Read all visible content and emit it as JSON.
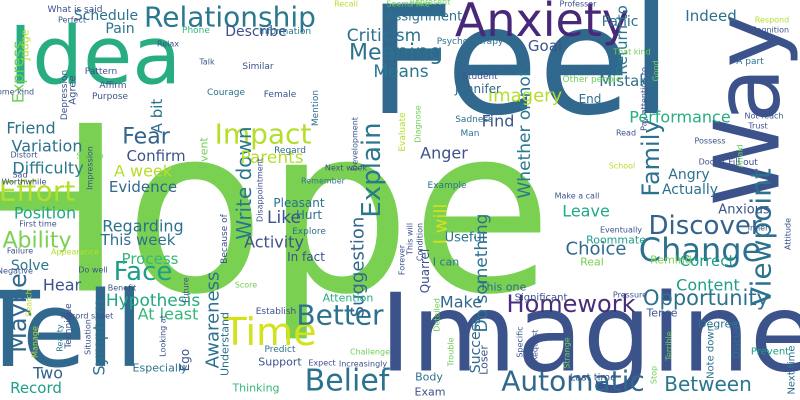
{
  "words": [
    {
      "text": "Hope",
      "color": "#7ad151"
    },
    {
      "text": "Feel",
      "color": "#30688e"
    },
    {
      "text": "Imagine",
      "color": "#3b528b"
    },
    {
      "text": "Idea",
      "color": "#27ad81"
    },
    {
      "text": "Tell",
      "color": "#31688e"
    },
    {
      "text": "Way",
      "color": "#3b528b"
    },
    {
      "text": "Anxiety",
      "color": "#482878"
    },
    {
      "text": "Change",
      "color": "#2c728e"
    },
    {
      "text": "Relationship",
      "color": "#2a788e"
    },
    {
      "text": "Belief",
      "color": "#2c728e"
    },
    {
      "text": "Time",
      "color": "#d2e21b"
    },
    {
      "text": "Impact",
      "color": "#b5de2b"
    },
    {
      "text": "Automatic",
      "color": "#31688e"
    },
    {
      "text": "Better",
      "color": "#2c728e"
    },
    {
      "text": "Viewpoint",
      "color": "#2c728e"
    },
    {
      "text": "Discover",
      "color": "#33638d"
    },
    {
      "text": "Explain",
      "color": "#2a788e"
    },
    {
      "text": "Family",
      "color": "#2c728e"
    },
    {
      "text": "Face",
      "color": "#1f9e89"
    },
    {
      "text": "Effort",
      "color": "#b5de2b"
    },
    {
      "text": "Homework",
      "color": "#472d7b"
    },
    {
      "text": "Opportunity",
      "color": "#2c728e"
    },
    {
      "text": "Between",
      "color": "#2a788e"
    },
    {
      "text": "Maybe",
      "color": "#31688e"
    },
    {
      "text": "Meaning",
      "color": "#2c728e"
    },
    {
      "text": "Write down",
      "color": "#2a788e"
    },
    {
      "text": "Fear",
      "color": "#33638d"
    },
    {
      "text": "Ability",
      "color": "#7ad151"
    },
    {
      "text": "Awareness",
      "color": "#2c728e"
    },
    {
      "text": "Parents",
      "color": "#b5de2b"
    },
    {
      "text": "Suggestion",
      "color": "#31688e"
    },
    {
      "text": "Do something",
      "color": "#2c728e"
    },
    {
      "text": "Whether or not",
      "color": "#2a788e"
    },
    {
      "text": "Hypothesis",
      "color": "#22a884"
    },
    {
      "text": "Means",
      "color": "#2a788e"
    },
    {
      "text": "Criticism",
      "color": "#2c728e"
    },
    {
      "text": "Imagery",
      "color": "#b5de2b"
    },
    {
      "text": "Find",
      "color": "#3b528b"
    },
    {
      "text": "Anger",
      "color": "#3b528b"
    },
    {
      "text": "Choice",
      "color": "#31688e"
    },
    {
      "text": "Make",
      "color": "#31688e"
    },
    {
      "text": "Leave",
      "color": "#22a884"
    },
    {
      "text": "Content",
      "color": "#1f9e89"
    },
    {
      "text": "Correct",
      "color": "#1f9e89"
    },
    {
      "text": "Position",
      "color": "#22a884"
    },
    {
      "text": "Difficulty",
      "color": "#2a788e"
    },
    {
      "text": "Variation",
      "color": "#2c728e"
    },
    {
      "text": "Friend",
      "color": "#2c728e"
    },
    {
      "text": "Confirm",
      "color": "#3b528b"
    },
    {
      "text": "Evidence",
      "color": "#31688e"
    },
    {
      "text": "A week",
      "color": "#b5de2b"
    },
    {
      "text": "Regarding",
      "color": "#2c728e"
    },
    {
      "text": "This week",
      "color": "#2c728e"
    },
    {
      "text": "Process",
      "color": "#35b779"
    },
    {
      "text": "At least",
      "color": "#35b779"
    },
    {
      "text": "Activity",
      "color": "#3b528b"
    },
    {
      "text": "Like",
      "color": "#3b528b"
    },
    {
      "text": "I will",
      "color": "#d2e21b"
    },
    {
      "text": "Mistake",
      "color": "#2c728e"
    },
    {
      "text": "Return to",
      "color": "#2a788e"
    },
    {
      "text": "Goal",
      "color": "#3b528b"
    },
    {
      "text": "Panic",
      "color": "#2c728e"
    },
    {
      "text": "Indeed",
      "color": "#2c728e"
    },
    {
      "text": "Performance",
      "color": "#27ad81"
    },
    {
      "text": "Angry",
      "color": "#2c728e"
    },
    {
      "text": "Actually",
      "color": "#2c728e"
    },
    {
      "text": "Anxious",
      "color": "#3b528b"
    },
    {
      "text": "Two",
      "color": "#33638d"
    },
    {
      "text": "Record",
      "color": "#1f9e89"
    },
    {
      "text": "Hear",
      "color": "#3b528b"
    },
    {
      "text": "Solve",
      "color": "#2a788e"
    },
    {
      "text": "Express",
      "color": "#6ece58"
    },
    {
      "text": "Schedule",
      "color": "#2c728e"
    },
    {
      "text": "Pain",
      "color": "#2c728e"
    },
    {
      "text": "Describe",
      "color": "#3b528b"
    },
    {
      "text": "A bit",
      "color": "#2c728e"
    },
    {
      "text": "Assignment",
      "color": "#2c728e"
    },
    {
      "text": "End",
      "color": "#2c728e"
    },
    {
      "text": "Jennifer",
      "color": "#31688e"
    },
    {
      "text": "This one",
      "color": "#31688e"
    },
    {
      "text": "Success",
      "color": "#31688e"
    },
    {
      "text": "Quarrel",
      "color": "#3b528b"
    },
    {
      "text": "Hurt",
      "color": "#2c728e"
    },
    {
      "text": "Pleasant",
      "color": "#2c728e"
    },
    {
      "text": "In fact",
      "color": "#3b528b"
    },
    {
      "text": "Symptom",
      "color": "#2c728e"
    },
    {
      "text": "Thinking",
      "color": "#35b779"
    },
    {
      "text": "Ego",
      "color": "#3b528b"
    },
    {
      "text": "Understand",
      "color": "#2c728e"
    },
    {
      "text": "Especially",
      "color": "#2c728e"
    },
    {
      "text": "Support",
      "color": "#3b528b"
    },
    {
      "text": "I can",
      "color": "#2c728e"
    },
    {
      "text": "Body",
      "color": "#2c728e"
    },
    {
      "text": "Exam",
      "color": "#3b528b"
    },
    {
      "text": "Loser",
      "color": "#3b528b"
    },
    {
      "text": "Useful",
      "color": "#2c728e"
    },
    {
      "text": "Real",
      "color": "#7ad151"
    },
    {
      "text": "Attention",
      "color": "#27ad81"
    },
    {
      "text": "Remind",
      "color": "#7ad151"
    },
    {
      "text": "Degree",
      "color": "#2c728e"
    },
    {
      "text": "Roommate",
      "color": "#1f9e89"
    },
    {
      "text": "Tense",
      "color": "#3b528b"
    },
    {
      "text": "Significant",
      "color": "#3b528b"
    },
    {
      "text": "Last time",
      "color": "#3b528b"
    },
    {
      "text": "Prevent",
      "color": "#1f9e89"
    },
    {
      "text": "Discuss",
      "color": "#2c728e"
    },
    {
      "text": "Note down",
      "color": "#2c728e"
    },
    {
      "text": "Next time",
      "color": "#2c728e"
    },
    {
      "text": "Courage",
      "color": "#2c728e"
    },
    {
      "text": "Female",
      "color": "#3b528b"
    },
    {
      "text": "Similar",
      "color": "#3b528b"
    },
    {
      "text": "Affirm",
      "color": "#3b528b"
    },
    {
      "text": "Pattern",
      "color": "#3b528b"
    },
    {
      "text": "Agree",
      "color": "#3b528b"
    },
    {
      "text": "Depression",
      "color": "#3b528b"
    },
    {
      "text": "Purpose",
      "color": "#3b528b"
    },
    {
      "text": "Phone",
      "color": "#35b779"
    },
    {
      "text": "Information",
      "color": "#2c728e"
    },
    {
      "text": "Mention",
      "color": "#2c728e"
    },
    {
      "text": "Psychotherapy",
      "color": "#2c728e"
    },
    {
      "text": "Other people",
      "color": "#6ece58"
    },
    {
      "text": "Student",
      "color": "#3b528b"
    },
    {
      "text": "Sadness",
      "color": "#2c728e"
    },
    {
      "text": "Man",
      "color": "#2c728e"
    },
    {
      "text": "Example",
      "color": "#2c728e"
    },
    {
      "text": "Regard",
      "color": "#31688e"
    },
    {
      "text": "Explore",
      "color": "#2c728e"
    },
    {
      "text": "Remember",
      "color": "#2c728e"
    },
    {
      "text": "Establish",
      "color": "#3b528b"
    },
    {
      "text": "Predict",
      "color": "#2c728e"
    },
    {
      "text": "Reality",
      "color": "#2c728e"
    },
    {
      "text": "Record sheet",
      "color": "#3b528b"
    },
    {
      "text": "Situation",
      "color": "#3b528b"
    },
    {
      "text": "Technique",
      "color": "#3b528b"
    },
    {
      "text": "Looking at",
      "color": "#3b528b"
    },
    {
      "text": "Future",
      "color": "#3b528b"
    },
    {
      "text": "Score",
      "color": "#6ece58"
    },
    {
      "text": "Benefit",
      "color": "#3b528b"
    },
    {
      "text": "Do well",
      "color": "#3b528b"
    },
    {
      "text": "Failure",
      "color": "#3b528b"
    },
    {
      "text": "First time",
      "color": "#3b528b"
    },
    {
      "text": "Worthwhile",
      "color": "#3b528b"
    },
    {
      "text": "Sad",
      "color": "#3b528b"
    },
    {
      "text": "Distort",
      "color": "#3b528b"
    },
    {
      "text": "Some kind",
      "color": "#3b528b"
    },
    {
      "text": "Judge",
      "color": "#b5de2b"
    },
    {
      "text": "What is said",
      "color": "#3b528b"
    },
    {
      "text": "Perfect",
      "color": "#3b528b"
    },
    {
      "text": "Relax",
      "color": "#3b528b"
    },
    {
      "text": "Talk",
      "color": "#3b528b"
    },
    {
      "text": "Simple",
      "color": "#6ece58"
    },
    {
      "text": "Impression",
      "color": "#3b528b"
    },
    {
      "text": "Event",
      "color": "#6ece58"
    },
    {
      "text": "Because of",
      "color": "#3b528b"
    },
    {
      "text": "Disappointment",
      "color": "#3b528b"
    },
    {
      "text": "Recall",
      "color": "#b5de2b"
    },
    {
      "text": "Seems like",
      "color": "#6ece58"
    },
    {
      "text": "Professor",
      "color": "#3b528b"
    },
    {
      "text": "Respond",
      "color": "#b5de2b"
    },
    {
      "text": "Cognition",
      "color": "#3b528b"
    },
    {
      "text": "A part",
      "color": "#2c728e"
    },
    {
      "text": "That kind",
      "color": "#6ece58"
    },
    {
      "text": "Good",
      "color": "#6ece58"
    },
    {
      "text": "Pay attention to",
      "color": "#3b528b"
    },
    {
      "text": "Not reach",
      "color": "#3b528b"
    },
    {
      "text": "Trust",
      "color": "#3b528b"
    },
    {
      "text": "Possess",
      "color": "#3b528b"
    },
    {
      "text": "Doctor",
      "color": "#3b528b"
    },
    {
      "text": "Afraid",
      "color": "#6ece58"
    },
    {
      "text": "Fill out",
      "color": "#3b528b"
    },
    {
      "text": "School",
      "color": "#b5de2b"
    },
    {
      "text": "Read",
      "color": "#3b528b"
    },
    {
      "text": "Represent",
      "color": "#6ece58"
    },
    {
      "text": "Evaluate",
      "color": "#b5de2b"
    },
    {
      "text": "Diagnose",
      "color": "#6ece58"
    },
    {
      "text": "Development",
      "color": "#3b528b"
    },
    {
      "text": "Next week",
      "color": "#3b528b"
    },
    {
      "text": "Forever",
      "color": "#3b528b"
    },
    {
      "text": "Condition",
      "color": "#3b528b"
    },
    {
      "text": "Make a call",
      "color": "#3b528b"
    },
    {
      "text": "This will",
      "color": "#3b528b"
    },
    {
      "text": "Eventually",
      "color": "#3b528b"
    },
    {
      "text": "Inner",
      "color": "#3b528b"
    },
    {
      "text": "Attitude",
      "color": "#3b528b"
    },
    {
      "text": "Specific",
      "color": "#3b528b"
    },
    {
      "text": "Detailed",
      "color": "#6ece58"
    },
    {
      "text": "Trouble",
      "color": "#6ece58"
    },
    {
      "text": "Request",
      "color": "#3b528b"
    },
    {
      "text": "Strange",
      "color": "#6ece58"
    },
    {
      "text": "Pressure",
      "color": "#3b528b"
    },
    {
      "text": "Stop",
      "color": "#6ece58"
    },
    {
      "text": "Terrible",
      "color": "#6ece58"
    },
    {
      "text": "Challenge",
      "color": "#6ece58"
    },
    {
      "text": "Increasingly",
      "color": "#3b528b"
    },
    {
      "text": "Expect",
      "color": "#3b528b"
    },
    {
      "text": "Search",
      "color": "#b5de2b"
    },
    {
      "text": "Negative",
      "color": "#3b528b"
    },
    {
      "text": "Manage",
      "color": "#b5de2b"
    },
    {
      "text": "Appearance",
      "color": "#b5de2b"
    },
    {
      "text": "He will",
      "color": "#3b528b"
    }
  ]
}
